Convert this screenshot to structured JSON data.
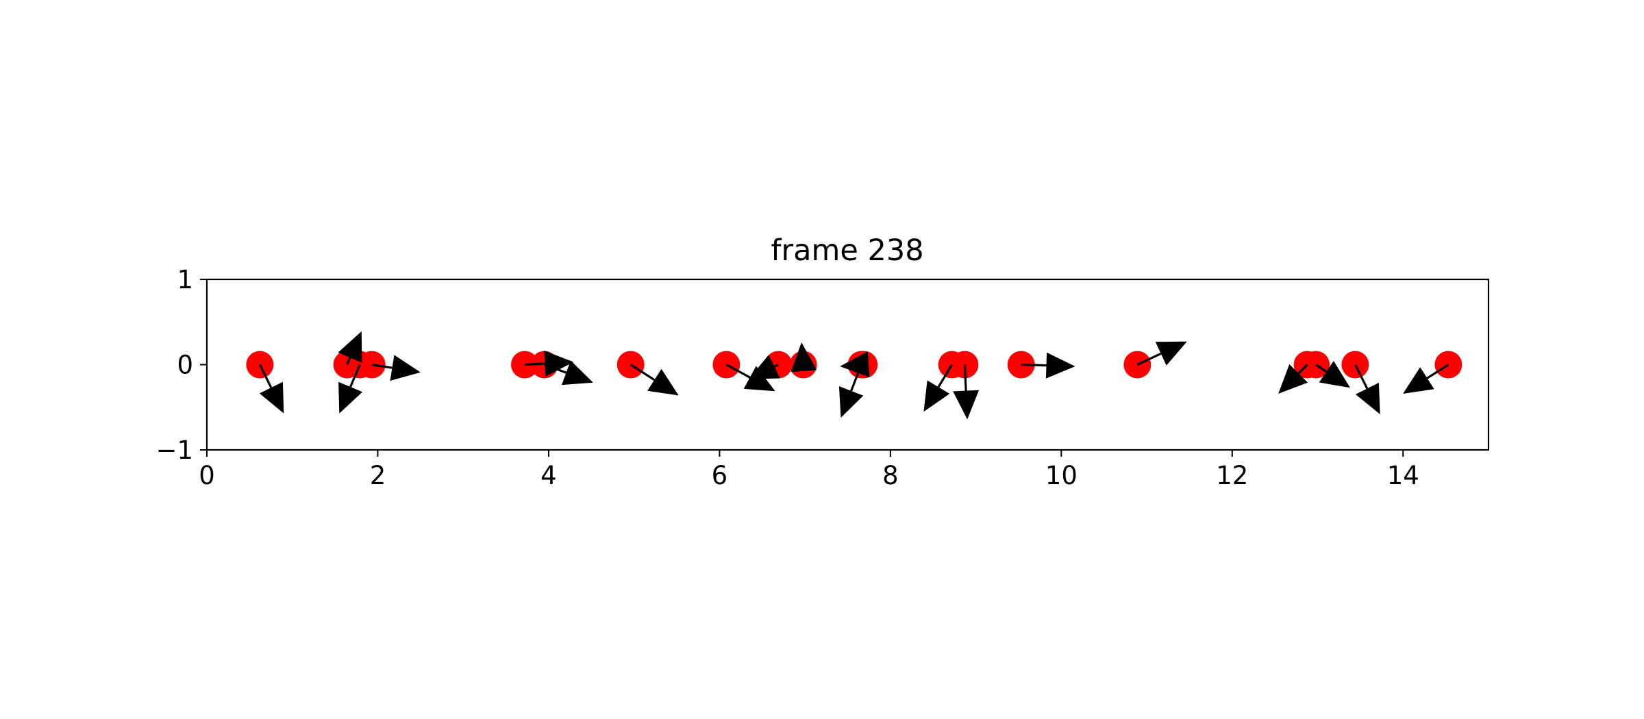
{
  "chart_data": {
    "type": "scatter",
    "title": "frame 238",
    "xlabel": "",
    "ylabel": "",
    "xlim": [
      0,
      15
    ],
    "ylim": [
      -1,
      1
    ],
    "xticks": [
      0,
      2,
      4,
      6,
      8,
      10,
      12,
      14
    ],
    "yticks": [
      -1,
      0,
      1
    ],
    "xtick_labels": [
      "0",
      "2",
      "4",
      "6",
      "8",
      "10",
      "12",
      "14"
    ],
    "ytick_labels": [
      "−1",
      "0",
      "1"
    ],
    "grid": false,
    "legend": "none",
    "point_color": "#ff0000",
    "arrow_color": "#000000",
    "points": [
      {
        "x": 0.62,
        "y": 0,
        "u": 0.28,
        "v": -0.57
      },
      {
        "x": 1.64,
        "y": 0,
        "u": 0.17,
        "v": 0.39
      },
      {
        "x": 1.79,
        "y": 0,
        "u": -0.24,
        "v": -0.57
      },
      {
        "x": 1.93,
        "y": 0,
        "u": 0.57,
        "v": -0.09
      },
      {
        "x": 3.72,
        "y": 0,
        "u": 0.57,
        "v": 0.03
      },
      {
        "x": 3.95,
        "y": 0,
        "u": 0.57,
        "v": -0.21
      },
      {
        "x": 4.96,
        "y": 0,
        "u": 0.56,
        "v": -0.36
      },
      {
        "x": 6.08,
        "y": 0,
        "u": 0.57,
        "v": -0.31
      },
      {
        "x": 6.69,
        "y": 0,
        "u": -0.35,
        "v": -0.17
      },
      {
        "x": 6.98,
        "y": 0,
        "u": -0.02,
        "v": 0.26
      },
      {
        "x": 7.66,
        "y": 0,
        "u": -0.24,
        "v": -0.62
      },
      {
        "x": 7.69,
        "y": 0,
        "u": -0.28,
        "v": -0.02
      },
      {
        "x": 8.72,
        "y": 0,
        "u": -0.33,
        "v": -0.55
      },
      {
        "x": 8.87,
        "y": 0,
        "u": 0.03,
        "v": -0.64
      },
      {
        "x": 9.53,
        "y": 0,
        "u": 0.63,
        "v": -0.02
      },
      {
        "x": 10.89,
        "y": 0,
        "u": 0.58,
        "v": 0.27
      },
      {
        "x": 12.88,
        "y": 0,
        "u": -0.34,
        "v": -0.34
      },
      {
        "x": 12.98,
        "y": 0,
        "u": 0.4,
        "v": -0.27
      },
      {
        "x": 13.44,
        "y": 0,
        "u": 0.29,
        "v": -0.58
      },
      {
        "x": 14.53,
        "y": 0,
        "u": -0.53,
        "v": -0.34
      }
    ]
  }
}
